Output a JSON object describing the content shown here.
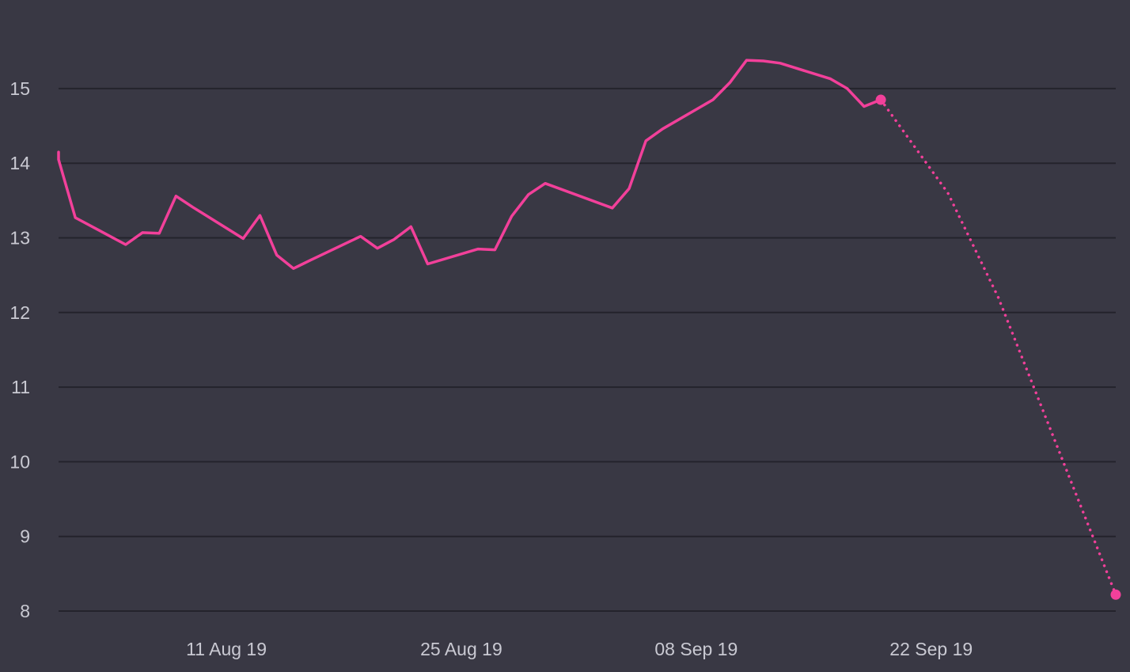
{
  "chart_data": {
    "type": "line",
    "title": "",
    "xlabel": "",
    "ylabel": "",
    "grid": true,
    "x_tick_labels": [
      "11 Aug 19",
      "25 Aug 19",
      "08 Sep 19",
      "22 Sep 19"
    ],
    "y_ticks": [
      8,
      9,
      10,
      11,
      12,
      13,
      14,
      15
    ],
    "xlim": [
      "2019-08-01",
      "2019-10-03"
    ],
    "ylim": [
      7.8,
      15.7
    ],
    "colors": {
      "background": "#393844",
      "grid": "#24232c",
      "line": "#f2409a",
      "tick_text": "#c9c9d2"
    },
    "series": [
      {
        "style": "solid",
        "points": [
          [
            "2019-08-01",
            14.15
          ],
          [
            "2019-08-01",
            14.05
          ],
          [
            "2019-08-02",
            13.27
          ],
          [
            "2019-08-05",
            12.91
          ],
          [
            "2019-08-06",
            13.07
          ],
          [
            "2019-08-07",
            13.06
          ],
          [
            "2019-08-08",
            13.56
          ],
          [
            "2019-08-09",
            13.41
          ],
          [
            "2019-08-12",
            12.99
          ],
          [
            "2019-08-13",
            13.3
          ],
          [
            "2019-08-14",
            12.77
          ],
          [
            "2019-08-15",
            12.59
          ],
          [
            "2019-08-16",
            12.7
          ],
          [
            "2019-08-19",
            13.02
          ],
          [
            "2019-08-20",
            12.86
          ],
          [
            "2019-08-21",
            12.98
          ],
          [
            "2019-08-22",
            13.15
          ],
          [
            "2019-08-23",
            12.65
          ],
          [
            "2019-08-26",
            12.85
          ],
          [
            "2019-08-27",
            12.84
          ],
          [
            "2019-08-28",
            13.29
          ],
          [
            "2019-08-29",
            13.58
          ],
          [
            "2019-08-30",
            13.73
          ],
          [
            "2019-09-03",
            13.4
          ],
          [
            "2019-09-04",
            13.66
          ],
          [
            "2019-09-05",
            14.3
          ],
          [
            "2019-09-06",
            14.46
          ],
          [
            "2019-09-09",
            14.85
          ],
          [
            "2019-09-10",
            15.08
          ],
          [
            "2019-09-11",
            15.38
          ],
          [
            "2019-09-12",
            15.37
          ],
          [
            "2019-09-13",
            15.34
          ],
          [
            "2019-09-16",
            15.13
          ],
          [
            "2019-09-17",
            15.0
          ],
          [
            "2019-09-18",
            14.76
          ],
          [
            "2019-09-19",
            14.85
          ]
        ]
      },
      {
        "style": "dotted",
        "points": [
          [
            "2019-09-19",
            14.85
          ],
          [
            "2019-09-23",
            13.6
          ],
          [
            "2019-09-26",
            12.2
          ],
          [
            "2019-10-03",
            8.22
          ]
        ]
      }
    ],
    "markers": [
      [
        "2019-09-19",
        14.85
      ],
      [
        "2019-10-03",
        8.22
      ]
    ]
  }
}
